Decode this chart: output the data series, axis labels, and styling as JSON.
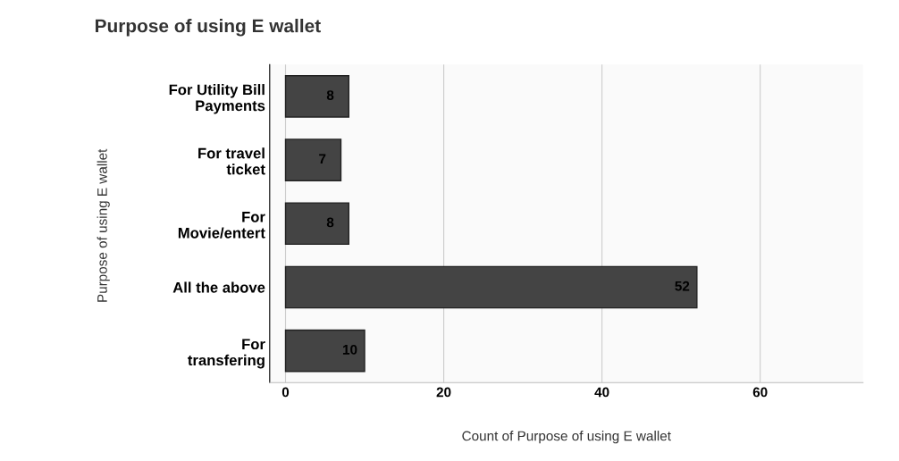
{
  "chart_data": {
    "type": "bar",
    "orientation": "horizontal",
    "title": "Purpose of using E wallet",
    "xlabel": "Count of Purpose of using E wallet",
    "ylabel": "Purpose of using E wallet",
    "categories": [
      "For Utility Bill\nPayments",
      "For travel\nticket",
      "For\nMovie/entert",
      "All the above",
      "For\ntransfering"
    ],
    "values": [
      8,
      7,
      8,
      52,
      10
    ],
    "color": "#444444",
    "data_labels": true,
    "xlim": [
      -2,
      73
    ],
    "xticks": [
      0,
      20,
      40,
      60
    ],
    "grid": "x",
    "legend": false
  }
}
